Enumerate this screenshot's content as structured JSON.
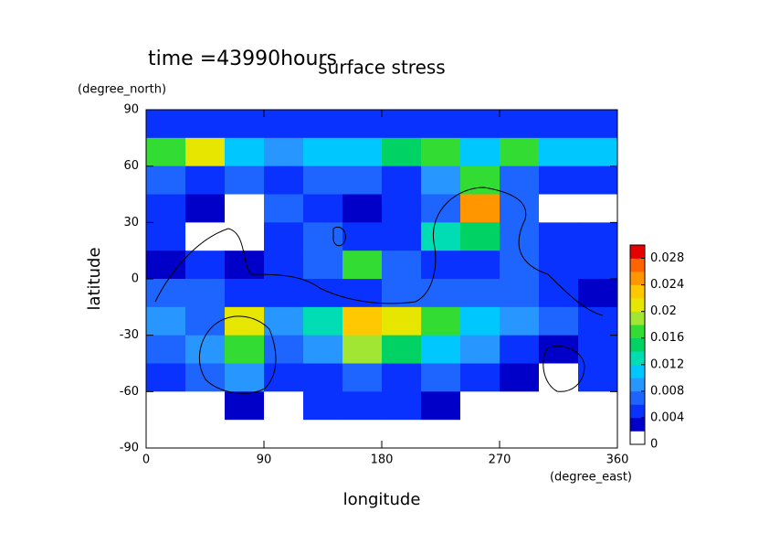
{
  "chart_data": {
    "type": "contour",
    "title": "surface stress",
    "subtitle": "time =43990hours",
    "x_label": "longitude",
    "x_unit": "(degree_east)",
    "y_label": "latitude",
    "y_unit": "(degree_north)",
    "xlim": [
      0,
      360
    ],
    "ylim": [
      -90,
      90
    ],
    "xticks": [
      0,
      90,
      180,
      270,
      360
    ],
    "yticks": [
      -90,
      -60,
      -30,
      0,
      30,
      60,
      90
    ],
    "x": [
      15,
      45,
      75,
      105,
      135,
      165,
      195,
      225,
      255,
      285,
      315,
      345
    ],
    "y": [
      82.5,
      67.5,
      52.5,
      37.5,
      22.5,
      7.5,
      -7.5,
      -22.5,
      -37.5,
      -52.5,
      -67.5,
      -82.5
    ],
    "z": [
      [
        0.005,
        0.005,
        0.005,
        0.005,
        0.005,
        0.005,
        0.005,
        0.005,
        0.005,
        0.005,
        0.005,
        0.005
      ],
      [
        0.016,
        0.02,
        0.01,
        0.008,
        0.01,
        0.01,
        0.014,
        0.016,
        0.01,
        0.016,
        0.01,
        0.01
      ],
      [
        0.006,
        0.004,
        0.006,
        0.004,
        0.006,
        0.006,
        0.004,
        0.008,
        0.016,
        0.006,
        0.004,
        0.004
      ],
      [
        0.004,
        0.002,
        0,
        0.006,
        0.004,
        0.002,
        0.004,
        0.006,
        0.024,
        0.006,
        0,
        0.001
      ],
      [
        0.004,
        0,
        0,
        0.004,
        0.006,
        0.004,
        0.004,
        0.012,
        0.014,
        0.006,
        0.004,
        0.004
      ],
      [
        0.002,
        0.004,
        0.002,
        0.004,
        0.006,
        0.016,
        0.006,
        0.004,
        0.004,
        0.006,
        0.004,
        0.004
      ],
      [
        0.006,
        0.006,
        0.004,
        0.004,
        0.004,
        0.004,
        0.006,
        0.006,
        0.006,
        0.006,
        0.004,
        0.002
      ],
      [
        0.008,
        0.006,
        0.02,
        0.008,
        0.012,
        0.022,
        0.02,
        0.016,
        0.01,
        0.008,
        0.006,
        0.004
      ],
      [
        0.006,
        0.008,
        0.016,
        0.006,
        0.008,
        0.018,
        0.014,
        0.01,
        0.008,
        0.004,
        0.002,
        0.004
      ],
      [
        0.004,
        0.006,
        0.008,
        0.004,
        0.004,
        0.006,
        0.004,
        0.006,
        0.004,
        0.002,
        0,
        0.004
      ],
      [
        0,
        0,
        0.002,
        0,
        0.004,
        0.004,
        0.004,
        0.002,
        0,
        0,
        0,
        0
      ],
      [
        0,
        0,
        0,
        0,
        0,
        0,
        0,
        0,
        0,
        0,
        0,
        0
      ]
    ],
    "levels": [
      0,
      0.002,
      0.004,
      0.006,
      0.008,
      0.01,
      0.012,
      0.014,
      0.016,
      0.018,
      0.02,
      0.022,
      0.024,
      0.026,
      0.028,
      0.03
    ],
    "colors": [
      "#ffffff",
      "#0000c8",
      "#0a32ff",
      "#1e64ff",
      "#2896ff",
      "#00c8ff",
      "#00dcb4",
      "#00d264",
      "#32dc32",
      "#a0e632",
      "#e6e600",
      "#ffc800",
      "#ff9600",
      "#ff6400",
      "#e60000"
    ],
    "cticks": [
      0,
      0.004,
      0.008,
      0.012,
      0.016,
      0.02,
      0.024,
      0.028
    ]
  }
}
